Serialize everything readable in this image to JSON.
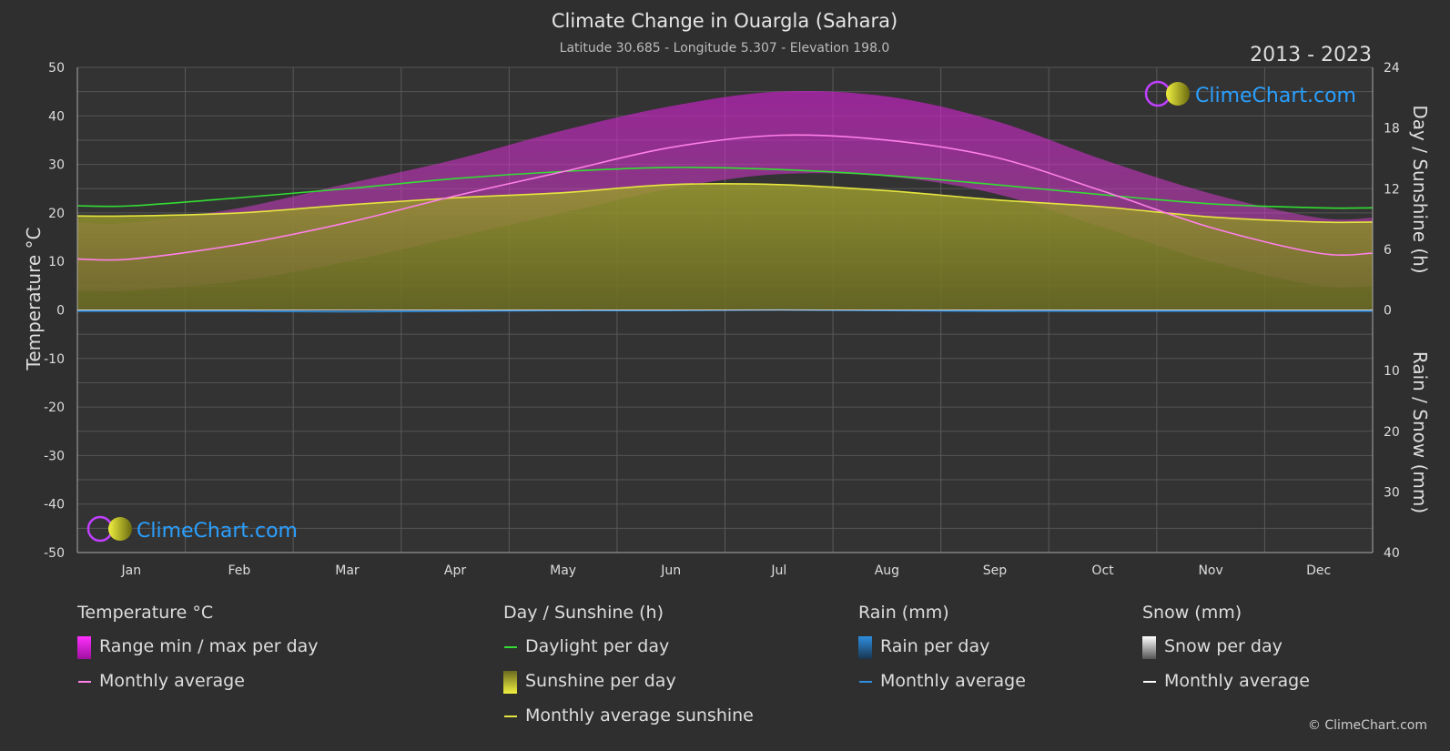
{
  "header": {
    "title": "Climate Change in Ouargla (Sahara)",
    "subtitle": "Latitude 30.685 - Longitude 5.307 - Elevation 198.0",
    "year_range": "2013 - 2023"
  },
  "watermark": {
    "text": "ClimeChart.com"
  },
  "copyright": "© ClimeChart.com",
  "chart_data": {
    "type": "area",
    "categories": [
      "Jan",
      "Feb",
      "Mar",
      "Apr",
      "May",
      "Jun",
      "Jul",
      "Aug",
      "Sep",
      "Oct",
      "Nov",
      "Dec"
    ],
    "y_left": {
      "label": "Temperature °C",
      "range": [
        -50,
        50
      ],
      "ticks": [
        "50",
        "40",
        "30",
        "20",
        "10",
        "0",
        "-10",
        "-20",
        "-30",
        "-40",
        "-50"
      ]
    },
    "y_right_top": {
      "label": "Day / Sunshine (h)",
      "range": [
        0,
        24
      ],
      "ticks": [
        "24",
        "18",
        "12",
        "6",
        "0"
      ]
    },
    "y_right_bottom": {
      "label": "Rain / Snow (mm)",
      "range": [
        0,
        40
      ],
      "ticks": [
        "10",
        "20",
        "30",
        "40"
      ]
    },
    "series": [
      {
        "name": "Monthly average",
        "group": "Temperature °C",
        "unit": "°C",
        "values": [
          10.5,
          13.5,
          18,
          23.5,
          28.5,
          33.5,
          36,
          35,
          31.5,
          24.5,
          17,
          11.7
        ]
      },
      {
        "name": "Range min / max per day",
        "group": "Temperature °C",
        "unit": "°C",
        "min": [
          4,
          6,
          10,
          15,
          20,
          25,
          28,
          27.5,
          24,
          17,
          10,
          5
        ],
        "max": [
          18,
          21,
          26,
          31,
          37,
          42,
          45,
          44,
          39,
          31,
          24,
          19
        ]
      },
      {
        "name": "Daylight per day",
        "group": "Day / Sunshine (h)",
        "unit": "h",
        "values": [
          10.3,
          11.1,
          12.0,
          13.0,
          13.7,
          14.1,
          13.9,
          13.3,
          12.4,
          11.4,
          10.5,
          10.1
        ]
      },
      {
        "name": "Monthly average sunshine",
        "group": "Day / Sunshine (h)",
        "unit": "h",
        "values": [
          9.3,
          9.6,
          10.4,
          11.1,
          11.6,
          12.4,
          12.4,
          11.8,
          10.9,
          10.2,
          9.2,
          8.7
        ]
      },
      {
        "name": "Monthly average",
        "group": "Rain (mm)",
        "unit": "mm",
        "values": [
          0.2,
          0.2,
          0.3,
          0.2,
          0.1,
          0.1,
          0.0,
          0.1,
          0.2,
          0.2,
          0.2,
          0.2
        ]
      },
      {
        "name": "Monthly average",
        "group": "Snow (mm)",
        "unit": "mm",
        "values": [
          0,
          0,
          0,
          0,
          0,
          0,
          0,
          0,
          0,
          0,
          0,
          0
        ]
      }
    ]
  },
  "legend": {
    "groups": [
      {
        "title": "Temperature °C",
        "items": [
          "Range min / max per day",
          "Monthly average"
        ]
      },
      {
        "title": "Day / Sunshine (h)",
        "items": [
          "Daylight per day",
          "Sunshine per day",
          "Monthly average sunshine"
        ]
      },
      {
        "title": "Rain (mm)",
        "items": [
          "Rain per day",
          "Monthly average"
        ]
      },
      {
        "title": "Snow (mm)",
        "items": [
          "Snow per day",
          "Monthly average"
        ]
      }
    ]
  },
  "colors": {
    "background": "#2f2f2f",
    "temp_range": "#d11fd1",
    "temp_avg": "#ff80e8",
    "daylight": "#33dd33",
    "sunshine_fill": "#8a8a2c",
    "sunshine_avg": "#e6e640",
    "rain": "#2d8ee0",
    "snow": "#ffffff",
    "brand": "#2aa0ff"
  }
}
